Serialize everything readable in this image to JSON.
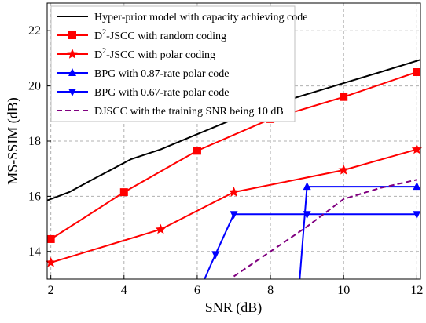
{
  "chart_data": {
    "type": "line",
    "xlabel": "SNR (dB)",
    "ylabel": "MS-SSIM (dB)",
    "xlim": [
      1.9,
      12.1
    ],
    "ylim": [
      13.0,
      23.0
    ],
    "xticks": [
      2,
      4,
      6,
      8,
      10,
      12
    ],
    "yticks": [
      14,
      16,
      18,
      20,
      22
    ],
    "grid": true,
    "legend_position": "top-left",
    "series": [
      {
        "name": "Hyper-prior model with capacity achieving code",
        "color": "#000000",
        "dash": "solid",
        "marker": "none",
        "x": [
          1.9,
          2.5,
          3.2,
          4.2,
          5.0,
          6.0,
          7.0,
          8.0,
          9.0,
          10.0,
          11.0,
          12.1
        ],
        "y": [
          15.85,
          16.15,
          16.65,
          17.35,
          17.7,
          18.25,
          18.8,
          19.3,
          19.7,
          20.1,
          20.5,
          20.95
        ]
      },
      {
        "name": "D^2-JSCC with random coding",
        "color": "#ff0000",
        "dash": "solid",
        "marker": "square",
        "x": [
          2,
          4,
          6,
          8,
          10,
          12
        ],
        "y": [
          14.45,
          16.15,
          17.65,
          18.8,
          19.6,
          20.5
        ]
      },
      {
        "name": "D^2-JSCC with polar coding",
        "color": "#ff0000",
        "dash": "solid",
        "marker": "star",
        "x": [
          2,
          5,
          7,
          10,
          12
        ],
        "y": [
          13.6,
          14.8,
          16.15,
          16.95,
          17.7
        ]
      },
      {
        "name": "BPG with 0.87-rate polar code",
        "color": "#0000ff",
        "dash": "solid",
        "marker": "triangle-up",
        "x": [
          8.8,
          9.0,
          12.0
        ],
        "y": [
          13.0,
          16.35,
          16.35
        ]
      },
      {
        "name": "BPG with 0.67-rate polar code",
        "color": "#0000ff",
        "dash": "solid",
        "marker": "triangle-down",
        "x": [
          6.2,
          6.5,
          7.0,
          9.0,
          12.0
        ],
        "y": [
          13.0,
          13.9,
          15.35,
          15.35,
          15.35
        ]
      },
      {
        "name": "DJSCC with the training SNR being 10 dB",
        "color": "#800080",
        "dash": "dashed",
        "marker": "none",
        "x": [
          7.0,
          8.0,
          9.0,
          10.0,
          11.0,
          12.0
        ],
        "y": [
          13.1,
          14.0,
          14.9,
          15.9,
          16.3,
          16.6
        ]
      }
    ]
  },
  "legend": {
    "items": [
      {
        "name": "Hyper-prior model with capacity achieving code"
      },
      {
        "prefix": "D",
        "sup": "2",
        "suffix": "-JSCC with random coding"
      },
      {
        "prefix": "D",
        "sup": "2",
        "suffix": "-JSCC with polar coding"
      },
      {
        "name": "BPG with 0.87-rate polar code"
      },
      {
        "name": "BPG with 0.67-rate polar code"
      },
      {
        "name": "DJSCC with the training SNR being 10 dB"
      }
    ]
  }
}
